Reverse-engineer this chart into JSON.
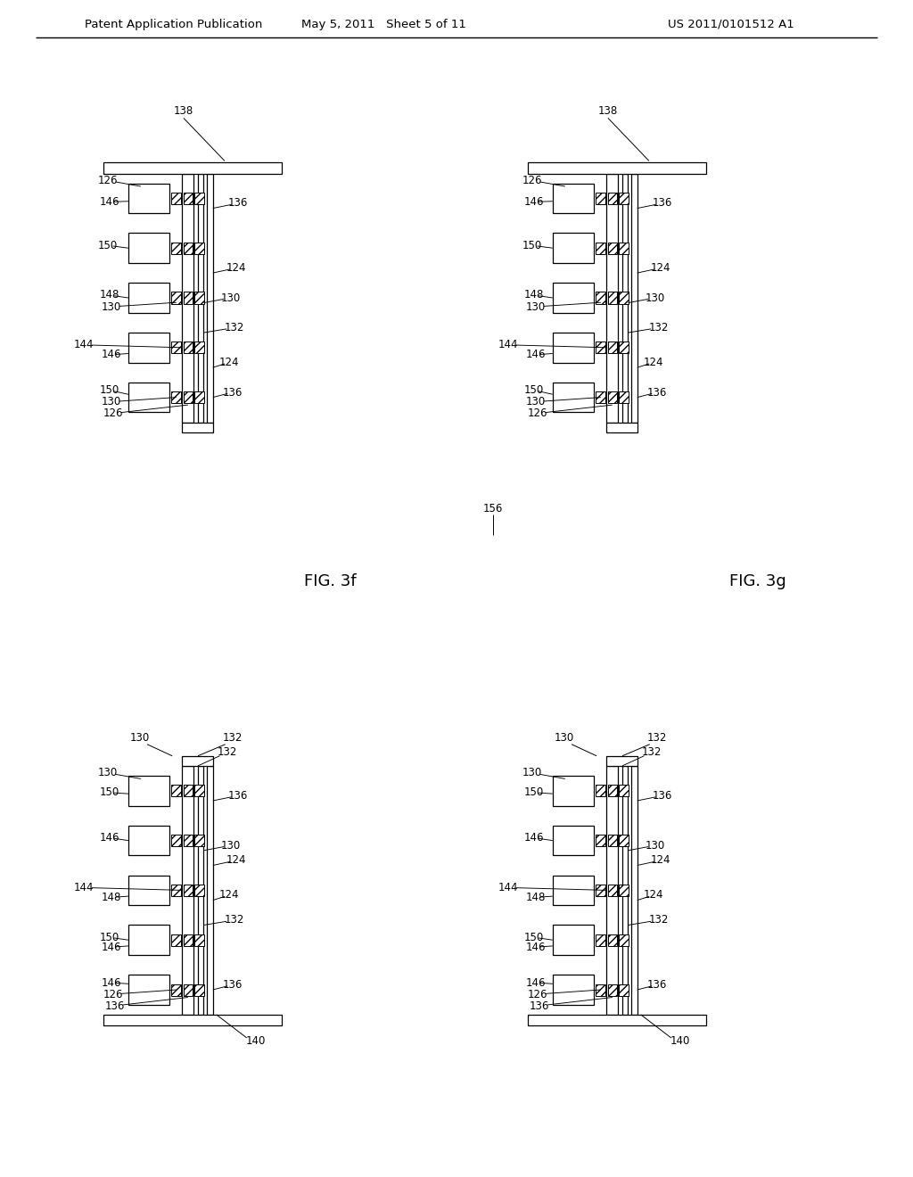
{
  "bg": "#ffffff",
  "lc": "#000000",
  "header_left": "Patent Application Publication",
  "header_mid": "May 5, 2011   Sheet 5 of 11",
  "header_right": "US 2011/0101512 A1",
  "fig3f": "FIG. 3f",
  "fig3g": "FIG. 3g",
  "label_138": "138",
  "label_140": "140",
  "label_156": "156"
}
